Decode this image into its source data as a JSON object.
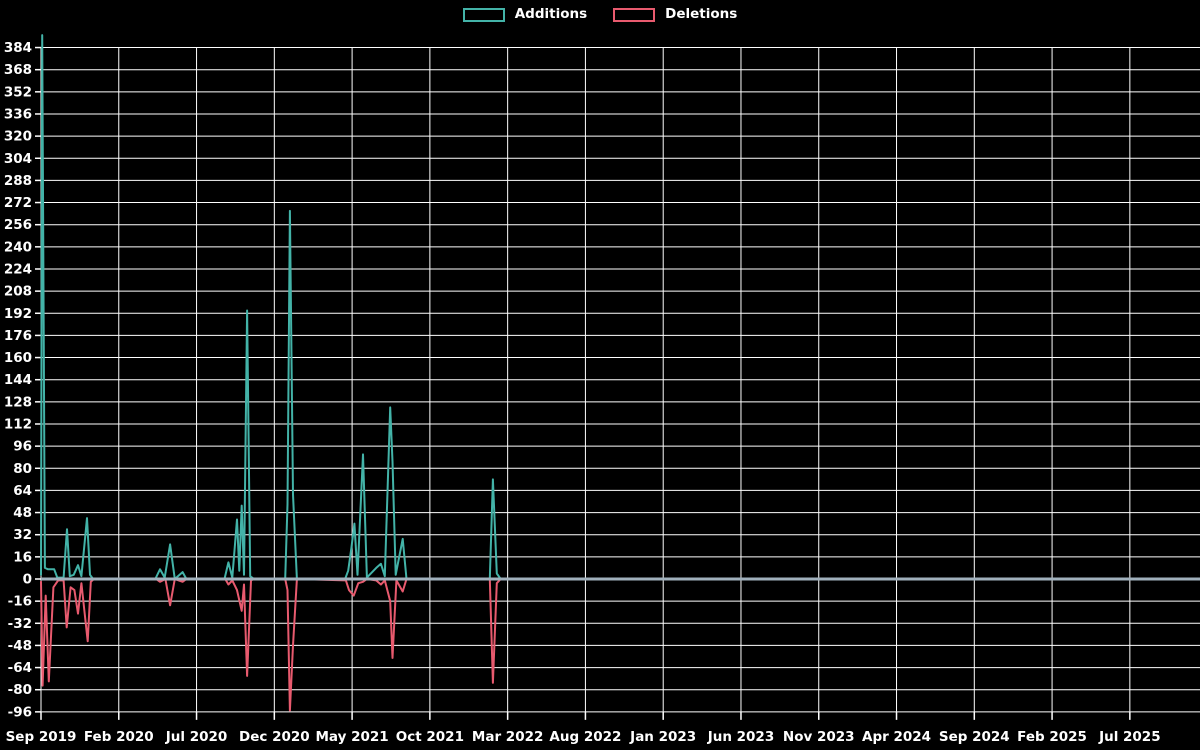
{
  "legend": {
    "additions_label": "Additions",
    "deletions_label": "Deletions"
  },
  "colors": {
    "background": "#000000",
    "grid": "#ffffff",
    "text": "#ffffff",
    "additions": "#43b3a8",
    "deletions": "#e85a6e",
    "zero_line": "#a0b0bc"
  },
  "chart_data": {
    "type": "line",
    "title": "",
    "xlabel": "",
    "ylabel": "",
    "legend_position": "top-center",
    "grid": true,
    "x_axis": {
      "unit": "months since Sep 2019",
      "tick_labels": [
        "Sep 2019",
        "Feb 2020",
        "Jul 2020",
        "Dec 2020",
        "May 2021",
        "Oct 2021",
        "Mar 2022",
        "Aug 2022",
        "Jan 2023",
        "Jun 2023",
        "Nov 2023",
        "Apr 2024",
        "Sep 2024",
        "Feb 2025",
        "Jul 2025"
      ],
      "tick_month_offsets": [
        0,
        5,
        10,
        15,
        20,
        25,
        30,
        35,
        40,
        45,
        50,
        55,
        60,
        65,
        70
      ]
    },
    "y_axis": {
      "min": -96,
      "max": 384,
      "tick_step": 16,
      "tick_labels": [
        384,
        368,
        352,
        336,
        320,
        304,
        288,
        272,
        256,
        240,
        224,
        208,
        192,
        176,
        160,
        144,
        128,
        112,
        96,
        80,
        64,
        48,
        32,
        16,
        0,
        -16,
        -32,
        -48,
        -64,
        -80,
        -96
      ]
    },
    "zero_line": true,
    "series": [
      {
        "name": "Additions",
        "color": "#43b3a8",
        "points": [
          [
            0,
            3
          ],
          [
            0.08,
            393
          ],
          [
            0.25,
            8
          ],
          [
            0.45,
            7
          ],
          [
            0.85,
            7
          ],
          [
            1.05,
            1
          ],
          [
            1.45,
            1
          ],
          [
            1.67,
            36
          ],
          [
            1.85,
            2
          ],
          [
            2.1,
            3
          ],
          [
            2.38,
            10
          ],
          [
            2.6,
            2
          ],
          [
            2.96,
            44
          ],
          [
            3.15,
            3
          ],
          [
            3.35,
            0
          ],
          [
            7.35,
            0
          ],
          [
            7.65,
            7
          ],
          [
            7.95,
            1
          ],
          [
            8.3,
            25
          ],
          [
            8.6,
            0
          ],
          [
            9.1,
            5
          ],
          [
            9.35,
            0
          ],
          [
            11.8,
            0
          ],
          [
            12.05,
            12
          ],
          [
            12.3,
            1
          ],
          [
            12.6,
            43
          ],
          [
            12.75,
            6
          ],
          [
            12.9,
            53
          ],
          [
            13.05,
            3
          ],
          [
            13.25,
            194
          ],
          [
            13.45,
            2
          ],
          [
            13.7,
            0
          ],
          [
            15.7,
            0
          ],
          [
            15.85,
            54
          ],
          [
            16.0,
            266
          ],
          [
            16.2,
            61
          ],
          [
            16.45,
            0
          ],
          [
            19.55,
            0
          ],
          [
            19.75,
            6
          ],
          [
            19.95,
            22
          ],
          [
            20.15,
            40
          ],
          [
            20.35,
            3
          ],
          [
            20.7,
            90
          ],
          [
            20.95,
            1
          ],
          [
            21.55,
            8
          ],
          [
            21.85,
            11
          ],
          [
            22.1,
            2
          ],
          [
            22.45,
            124
          ],
          [
            22.6,
            85
          ],
          [
            22.8,
            3
          ],
          [
            23.25,
            29
          ],
          [
            23.5,
            0
          ],
          [
            28.85,
            0
          ],
          [
            29.05,
            72
          ],
          [
            29.3,
            4
          ],
          [
            29.55,
            0
          ]
        ]
      },
      {
        "name": "Deletions",
        "color": "#e85a6e",
        "points": [
          [
            0,
            -2
          ],
          [
            0.1,
            -77
          ],
          [
            0.3,
            -12
          ],
          [
            0.5,
            -74
          ],
          [
            0.8,
            -6
          ],
          [
            1.1,
            -1
          ],
          [
            1.45,
            -1
          ],
          [
            1.65,
            -35
          ],
          [
            1.9,
            -6
          ],
          [
            2.15,
            -8
          ],
          [
            2.38,
            -25
          ],
          [
            2.6,
            -3
          ],
          [
            3.0,
            -45
          ],
          [
            3.2,
            -2
          ],
          [
            3.4,
            0
          ],
          [
            7.4,
            0
          ],
          [
            7.65,
            -2
          ],
          [
            8.0,
            0
          ],
          [
            8.3,
            -19
          ],
          [
            8.6,
            0
          ],
          [
            9.1,
            -2
          ],
          [
            9.35,
            0
          ],
          [
            11.85,
            0
          ],
          [
            12.05,
            -4
          ],
          [
            12.3,
            -1
          ],
          [
            12.6,
            -8
          ],
          [
            12.9,
            -23
          ],
          [
            13.05,
            -4
          ],
          [
            13.25,
            -70
          ],
          [
            13.5,
            -1
          ],
          [
            13.7,
            0
          ],
          [
            15.7,
            0
          ],
          [
            15.85,
            -8
          ],
          [
            16.0,
            -95
          ],
          [
            16.2,
            -48
          ],
          [
            16.45,
            0
          ],
          [
            19.6,
            -1
          ],
          [
            19.8,
            -8
          ],
          [
            20.1,
            -12
          ],
          [
            20.4,
            -3
          ],
          [
            20.7,
            -2
          ],
          [
            20.95,
            0
          ],
          [
            21.55,
            -1
          ],
          [
            21.85,
            -4
          ],
          [
            22.1,
            -1
          ],
          [
            22.45,
            -16
          ],
          [
            22.6,
            -57
          ],
          [
            22.85,
            -1
          ],
          [
            23.25,
            -9
          ],
          [
            23.5,
            0
          ],
          [
            28.85,
            0
          ],
          [
            29.05,
            -75
          ],
          [
            29.3,
            -3
          ],
          [
            29.55,
            0
          ]
        ]
      }
    ]
  }
}
